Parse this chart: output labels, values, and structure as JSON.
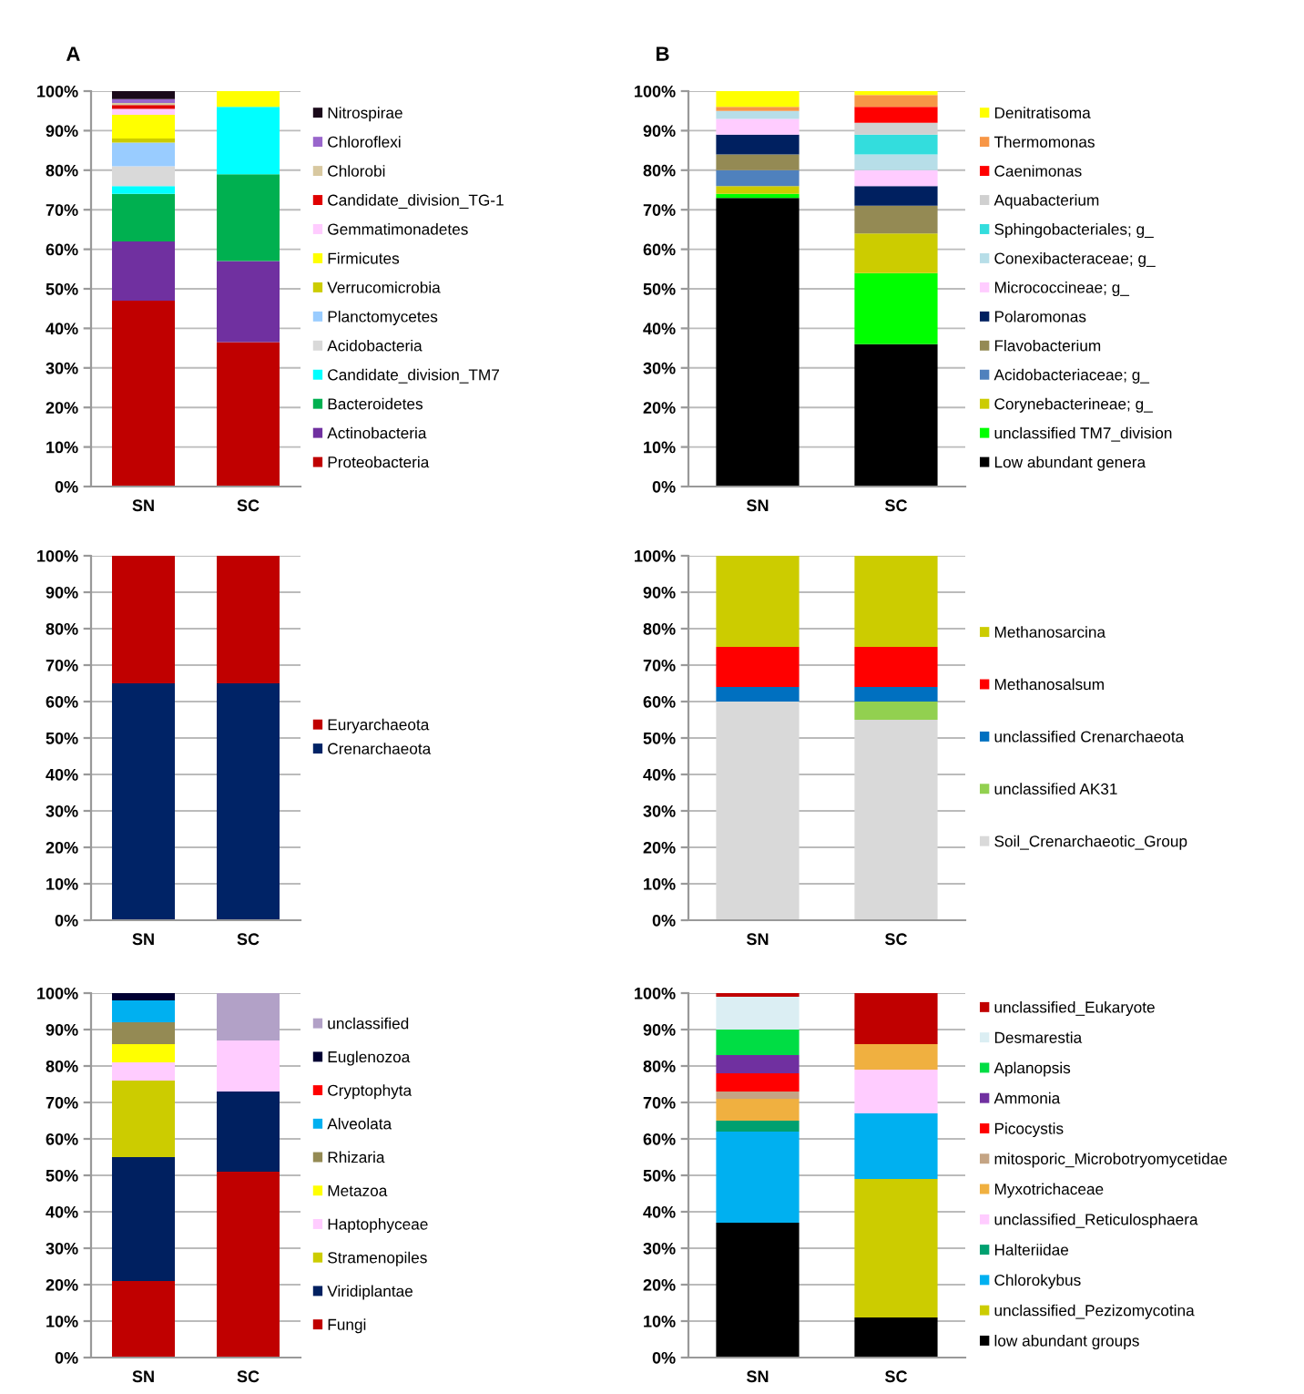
{
  "chart_data": [
    {
      "type": "bar",
      "title": "A",
      "stacked": true,
      "categories": [
        "SN",
        "SC"
      ],
      "ylim": [
        0,
        100
      ],
      "yticks": [
        {
          "value": 0,
          "label": "0%"
        },
        {
          "value": 10,
          "label": "10%"
        },
        {
          "value": 20,
          "label": "20%"
        },
        {
          "value": 30,
          "label": "30%"
        },
        {
          "value": 40,
          "label": "40%"
        },
        {
          "value": 50,
          "label": "50%"
        },
        {
          "value": 60,
          "label": "60%"
        },
        {
          "value": 70,
          "label": "70%"
        },
        {
          "value": 80,
          "label": "80%"
        },
        {
          "value": 90,
          "label": "90%"
        },
        {
          "value": 100,
          "label": "100%"
        }
      ],
      "grid": "y",
      "legend": "right",
      "series": [
        {
          "name": "Proteobacteria",
          "color": "#c00000",
          "values": [
            47,
            36.5
          ]
        },
        {
          "name": "Actinobacteria",
          "color": "#7030a0",
          "values": [
            15,
            20.5
          ]
        },
        {
          "name": "Bacteroidetes",
          "color": "#00b050",
          "values": [
            12,
            22
          ]
        },
        {
          "name": "Candidate_division_TM7",
          "color": "#00ffff",
          "values": [
            2,
            17
          ]
        },
        {
          "name": "Acidobacteria",
          "color": "#d9d9d9",
          "values": [
            5,
            0
          ]
        },
        {
          "name": "Planctomycetes",
          "color": "#99ccff",
          "values": [
            6,
            0
          ]
        },
        {
          "name": "Verrucomicrobia",
          "color": "#cccc00",
          "values": [
            1,
            0
          ]
        },
        {
          "name": "Firmicutes",
          "color": "#ffff00",
          "values": [
            6,
            4
          ]
        },
        {
          "name": "Gemmatimonadetes",
          "color": "#ffccff",
          "values": [
            1.5,
            0
          ]
        },
        {
          "name": "Candidate_division_TG-1",
          "color": "#e00000",
          "values": [
            1,
            0
          ]
        },
        {
          "name": "Chlorobi",
          "color": "#d8c8a0",
          "values": [
            0.5,
            0
          ]
        },
        {
          "name": "Chloroflexi",
          "color": "#9966cc",
          "values": [
            1,
            0
          ]
        },
        {
          "name": "Nitrospirae",
          "color": "#1a0a1a",
          "values": [
            2,
            0
          ]
        }
      ]
    },
    {
      "type": "bar",
      "title": "B",
      "stacked": true,
      "categories": [
        "SN",
        "SC"
      ],
      "ylim": [
        0,
        100
      ],
      "yticks": [
        {
          "value": 0,
          "label": "0%"
        },
        {
          "value": 10,
          "label": "10%"
        },
        {
          "value": 20,
          "label": "20%"
        },
        {
          "value": 30,
          "label": "30%"
        },
        {
          "value": 40,
          "label": "40%"
        },
        {
          "value": 50,
          "label": "50%"
        },
        {
          "value": 60,
          "label": "60%"
        },
        {
          "value": 70,
          "label": "70%"
        },
        {
          "value": 80,
          "label": "80%"
        },
        {
          "value": 90,
          "label": "90%"
        },
        {
          "value": 100,
          "label": "100%"
        }
      ],
      "grid": "y",
      "legend": "right",
      "series": [
        {
          "name": "Low abundant genera",
          "color": "#000000",
          "values": [
            73,
            36
          ]
        },
        {
          "name": "unclassified TM7_division",
          "color": "#00ff00",
          "values": [
            1,
            18
          ]
        },
        {
          "name": "Corynebacterineae; g_",
          "color": "#cccc00",
          "values": [
            2,
            10
          ]
        },
        {
          "name": "Acidobacteriaceae; g_",
          "color": "#4f81bd",
          "values": [
            4,
            0
          ]
        },
        {
          "name": "Flavobacterium",
          "color": "#948a54",
          "values": [
            4,
            7
          ]
        },
        {
          "name": "Polaromonas",
          "color": "#002060",
          "values": [
            5,
            5
          ]
        },
        {
          "name": "Micrococcineae; g_",
          "color": "#ffccff",
          "values": [
            4,
            4
          ]
        },
        {
          "name": "Conexibacteraceae; g_",
          "color": "#b7dee8",
          "values": [
            2,
            4
          ]
        },
        {
          "name": "Sphingobacteriales; g_",
          "color": "#33dddd",
          "values": [
            0,
            5
          ]
        },
        {
          "name": "Aquabacterium",
          "color": "#d0d0d0",
          "values": [
            0,
            3
          ]
        },
        {
          "name": "Caenimonas",
          "color": "#ff0000",
          "values": [
            0,
            4
          ]
        },
        {
          "name": "Thermomonas",
          "color": "#f79646",
          "values": [
            1,
            3
          ]
        },
        {
          "name": "Denitratisoma",
          "color": "#ffff00",
          "values": [
            4,
            1
          ]
        }
      ]
    },
    {
      "type": "bar",
      "stacked": true,
      "categories": [
        "SN",
        "SC"
      ],
      "ylim": [
        0,
        100
      ],
      "yticks": [
        {
          "value": 0,
          "label": "0%"
        },
        {
          "value": 10,
          "label": "10%"
        },
        {
          "value": 20,
          "label": "20%"
        },
        {
          "value": 30,
          "label": "30%"
        },
        {
          "value": 40,
          "label": "40%"
        },
        {
          "value": 50,
          "label": "50%"
        },
        {
          "value": 60,
          "label": "60%"
        },
        {
          "value": 70,
          "label": "70%"
        },
        {
          "value": 80,
          "label": "80%"
        },
        {
          "value": 90,
          "label": "90%"
        },
        {
          "value": 100,
          "label": "100%"
        }
      ],
      "grid": "y",
      "legend": "right",
      "series": [
        {
          "name": "Crenarchaeota",
          "color": "#002366",
          "values": [
            65,
            65
          ]
        },
        {
          "name": "Euryarchaeota",
          "color": "#c00000",
          "values": [
            35,
            35
          ]
        }
      ]
    },
    {
      "type": "bar",
      "stacked": true,
      "categories": [
        "SN",
        "SC"
      ],
      "ylim": [
        0,
        100
      ],
      "yticks": [
        {
          "value": 0,
          "label": "0%"
        },
        {
          "value": 10,
          "label": "10%"
        },
        {
          "value": 20,
          "label": "20%"
        },
        {
          "value": 30,
          "label": "30%"
        },
        {
          "value": 40,
          "label": "40%"
        },
        {
          "value": 50,
          "label": "50%"
        },
        {
          "value": 60,
          "label": "60%"
        },
        {
          "value": 70,
          "label": "70%"
        },
        {
          "value": 80,
          "label": "80%"
        },
        {
          "value": 90,
          "label": "90%"
        },
        {
          "value": 100,
          "label": "100%"
        }
      ],
      "grid": "y",
      "legend": "right",
      "series": [
        {
          "name": "Soil_Crenarchaeotic_Group",
          "color": "#d9d9d9",
          "values": [
            60,
            55
          ]
        },
        {
          "name": "unclassified AK31",
          "color": "#92d050",
          "values": [
            0,
            5
          ]
        },
        {
          "name": "unclassified Crenarchaeota",
          "color": "#0070c0",
          "values": [
            4,
            4
          ]
        },
        {
          "name": "Methanosalsum",
          "color": "#ff0000",
          "values": [
            11,
            11
          ]
        },
        {
          "name": "Methanosarcina",
          "color": "#cccc00",
          "values": [
            25,
            25
          ]
        }
      ]
    },
    {
      "type": "bar",
      "stacked": true,
      "categories": [
        "SN",
        "SC"
      ],
      "ylim": [
        0,
        100
      ],
      "yticks": [
        {
          "value": 0,
          "label": "0%"
        },
        {
          "value": 10,
          "label": "10%"
        },
        {
          "value": 20,
          "label": "20%"
        },
        {
          "value": 30,
          "label": "30%"
        },
        {
          "value": 40,
          "label": "40%"
        },
        {
          "value": 50,
          "label": "50%"
        },
        {
          "value": 60,
          "label": "60%"
        },
        {
          "value": 70,
          "label": "70%"
        },
        {
          "value": 80,
          "label": "80%"
        },
        {
          "value": 90,
          "label": "90%"
        },
        {
          "value": 100,
          "label": "100%"
        }
      ],
      "grid": "y",
      "legend": "right",
      "series": [
        {
          "name": "Fungi",
          "color": "#c00000",
          "values": [
            21,
            51
          ]
        },
        {
          "name": "Viridiplantae",
          "color": "#002060",
          "values": [
            34,
            22
          ]
        },
        {
          "name": "Stramenopiles",
          "color": "#cccc00",
          "values": [
            21,
            0
          ]
        },
        {
          "name": "Haptophyceae",
          "color": "#ffccff",
          "values": [
            5,
            14
          ]
        },
        {
          "name": "Metazoa",
          "color": "#ffff00",
          "values": [
            5,
            0
          ]
        },
        {
          "name": "Rhizaria",
          "color": "#948a54",
          "values": [
            6,
            0
          ]
        },
        {
          "name": "Alveolata",
          "color": "#00b0f0",
          "values": [
            6,
            0
          ]
        },
        {
          "name": "Cryptophyta",
          "color": "#ff0000",
          "values": [
            0,
            0
          ]
        },
        {
          "name": "Euglenozoa",
          "color": "#000033",
          "values": [
            2,
            0
          ]
        },
        {
          "name": "unclassified",
          "color": "#b2a1c7",
          "values": [
            0,
            13
          ]
        }
      ]
    },
    {
      "type": "bar",
      "stacked": true,
      "categories": [
        "SN",
        "SC"
      ],
      "ylim": [
        0,
        100
      ],
      "yticks": [
        {
          "value": 0,
          "label": "0%"
        },
        {
          "value": 10,
          "label": "10%"
        },
        {
          "value": 20,
          "label": "20%"
        },
        {
          "value": 30,
          "label": "30%"
        },
        {
          "value": 40,
          "label": "40%"
        },
        {
          "value": 50,
          "label": "50%"
        },
        {
          "value": 60,
          "label": "60%"
        },
        {
          "value": 70,
          "label": "70%"
        },
        {
          "value": 80,
          "label": "80%"
        },
        {
          "value": 90,
          "label": "90%"
        },
        {
          "value": 100,
          "label": "100%"
        }
      ],
      "grid": "y",
      "legend": "right",
      "series": [
        {
          "name": "low abundant groups",
          "color": "#000000",
          "values": [
            37,
            11
          ]
        },
        {
          "name": "unclassified_Pezizomycotina",
          "color": "#cccc00",
          "values": [
            0,
            38
          ]
        },
        {
          "name": "Chlorokybus",
          "color": "#00b0f0",
          "values": [
            25,
            18
          ]
        },
        {
          "name": "Halteriidae",
          "color": "#00a070",
          "values": [
            3,
            0
          ]
        },
        {
          "name": "unclassified_Reticulosphaera",
          "color": "#ffccff",
          "values": [
            0,
            12
          ]
        },
        {
          "name": "Myxotrichaceae",
          "color": "#f0b040",
          "values": [
            6,
            7
          ]
        },
        {
          "name": "mitosporic_Microbotryomycetidae",
          "color": "#c4a484",
          "values": [
            2,
            0
          ]
        },
        {
          "name": "Picocystis",
          "color": "#ff0000",
          "values": [
            5,
            0
          ]
        },
        {
          "name": "Ammonia",
          "color": "#7030a0",
          "values": [
            5,
            0
          ]
        },
        {
          "name": "Aplanopsis",
          "color": "#00dd44",
          "values": [
            7,
            0
          ]
        },
        {
          "name": "Desmarestia",
          "color": "#dbeef3",
          "values": [
            9,
            0
          ]
        },
        {
          "name": "unclassified_Eukaryote",
          "color": "#c00000",
          "values": [
            1,
            14
          ]
        }
      ]
    }
  ]
}
